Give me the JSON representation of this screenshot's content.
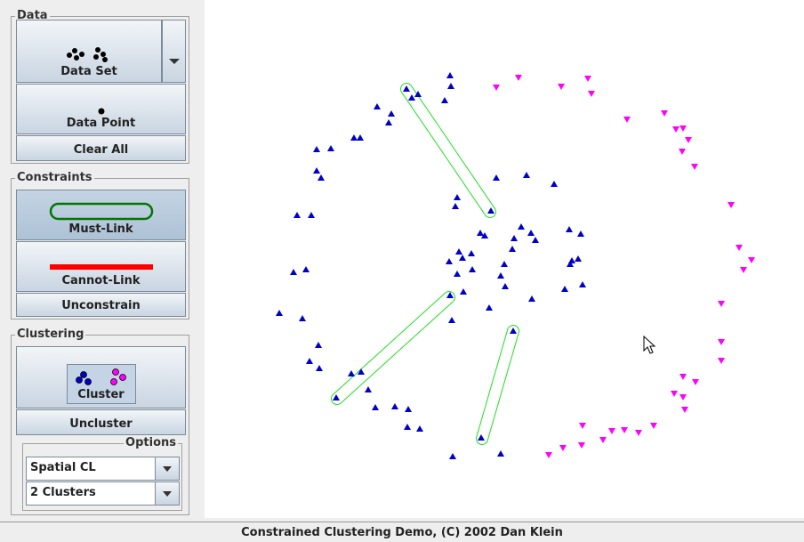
{
  "panel": {
    "data_group": {
      "title": "Data",
      "data_set": "Data Set",
      "data_point": "Data Point",
      "clear_all": "Clear All"
    },
    "constraints_group": {
      "title": "Constraints",
      "must_link": "Must-Link",
      "cannot_link": "Cannot-Link",
      "unconstrain": "Unconstrain"
    },
    "clustering_group": {
      "title": "Clustering",
      "cluster": "Cluster",
      "uncluster": "Uncluster",
      "options": {
        "title": "Options",
        "method": "Spatial CL",
        "clusters": "2 Clusters"
      }
    }
  },
  "status_bar": "Constrained Clustering Demo, (C) 2002 Dan Klein"
}
